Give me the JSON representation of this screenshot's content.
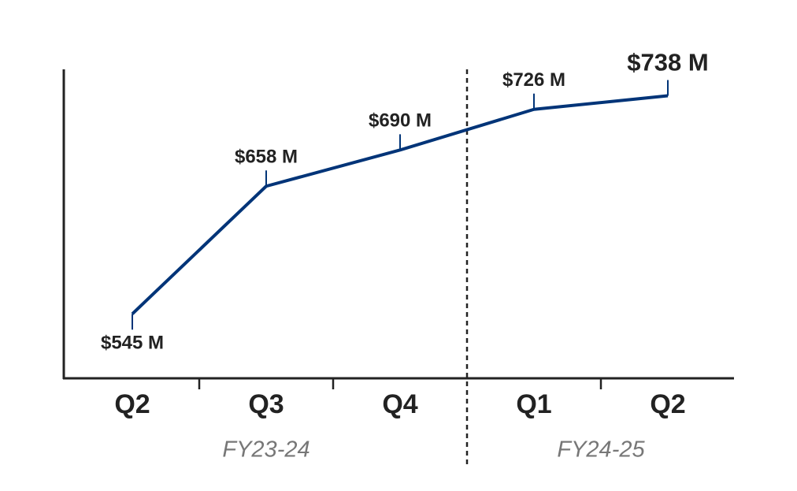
{
  "chart_data": {
    "type": "line",
    "categories": [
      "Q2",
      "Q3",
      "Q4",
      "Q1",
      "Q2"
    ],
    "category_groups": [
      "FY23-24",
      "FY23-24",
      "FY23-24",
      "FY24-25",
      "FY24-25"
    ],
    "values": [
      545,
      658,
      690,
      726,
      738
    ],
    "value_labels": [
      "$545 M",
      "$658 M",
      "$690 M",
      "$726 M",
      "$738 M"
    ],
    "color": "#003478",
    "ylim": [
      488,
      760
    ]
  }
}
